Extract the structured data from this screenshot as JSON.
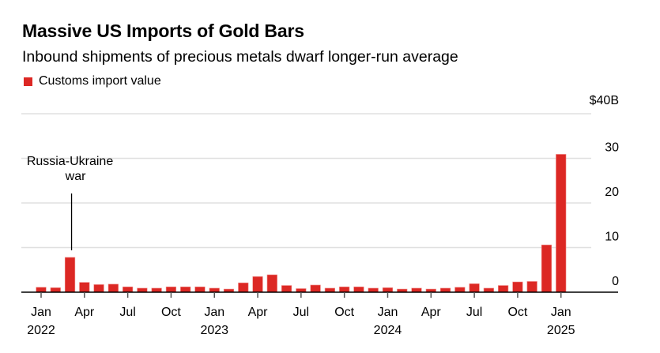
{
  "header": {
    "title": "Massive US Imports of Gold Bars",
    "subtitle": "Inbound shipments of precious metals dwarf longer-run average"
  },
  "colors": {
    "bar": "#dc2824",
    "gridline": "#e0e0e0",
    "axis": "#000000",
    "tick": "#555555"
  },
  "chart_data": {
    "type": "bar",
    "title": "Massive US Imports of Gold Bars",
    "subtitle": "Inbound shipments of precious metals dwarf longer-run average",
    "xlabel": "",
    "ylabel": "",
    "ylim": [
      0,
      40
    ],
    "yticks": [
      0,
      10,
      20,
      30,
      40
    ],
    "ytick_labels": [
      "0",
      "10",
      "20",
      "30",
      "$40B"
    ],
    "grid": true,
    "y_axis_side": "right",
    "legend": {
      "position": "top-left",
      "entries": [
        "Customs import value"
      ]
    },
    "categories": [
      "2022-01",
      "2022-02",
      "2022-03",
      "2022-04",
      "2022-05",
      "2022-06",
      "2022-07",
      "2022-08",
      "2022-09",
      "2022-10",
      "2022-11",
      "2022-12",
      "2023-01",
      "2023-02",
      "2023-03",
      "2023-04",
      "2023-05",
      "2023-06",
      "2023-07",
      "2023-08",
      "2023-09",
      "2023-10",
      "2023-11",
      "2023-12",
      "2024-01",
      "2024-02",
      "2024-03",
      "2024-04",
      "2024-05",
      "2024-06",
      "2024-07",
      "2024-08",
      "2024-09",
      "2024-10",
      "2024-11",
      "2024-12",
      "2025-01"
    ],
    "series": [
      {
        "name": "Customs import value",
        "unit": "$B",
        "values": [
          1.1,
          1.0,
          7.8,
          2.2,
          1.7,
          1.8,
          1.2,
          0.9,
          0.9,
          1.2,
          1.2,
          1.2,
          0.9,
          0.7,
          2.1,
          3.5,
          3.9,
          1.5,
          0.8,
          1.6,
          0.9,
          1.2,
          1.2,
          0.9,
          1.0,
          0.7,
          0.9,
          0.7,
          0.9,
          1.1,
          1.9,
          0.9,
          1.5,
          2.3,
          2.4,
          10.6,
          30.9
        ]
      }
    ],
    "xticks": [
      {
        "index": 0,
        "month": "Jan",
        "year": "2022"
      },
      {
        "index": 3,
        "month": "Apr",
        "year": ""
      },
      {
        "index": 6,
        "month": "Jul",
        "year": ""
      },
      {
        "index": 9,
        "month": "Oct",
        "year": ""
      },
      {
        "index": 12,
        "month": "Jan",
        "year": "2023"
      },
      {
        "index": 15,
        "month": "Apr",
        "year": ""
      },
      {
        "index": 18,
        "month": "Jul",
        "year": ""
      },
      {
        "index": 21,
        "month": "Oct",
        "year": ""
      },
      {
        "index": 24,
        "month": "Jan",
        "year": "2024"
      },
      {
        "index": 27,
        "month": "Apr",
        "year": ""
      },
      {
        "index": 30,
        "month": "Jul",
        "year": ""
      },
      {
        "index": 33,
        "month": "Oct",
        "year": ""
      },
      {
        "index": 36,
        "month": "Jan",
        "year": "2025"
      }
    ],
    "annotations": [
      {
        "index": 2,
        "lines": [
          "Russia-Ukraine",
          "war"
        ]
      }
    ]
  }
}
